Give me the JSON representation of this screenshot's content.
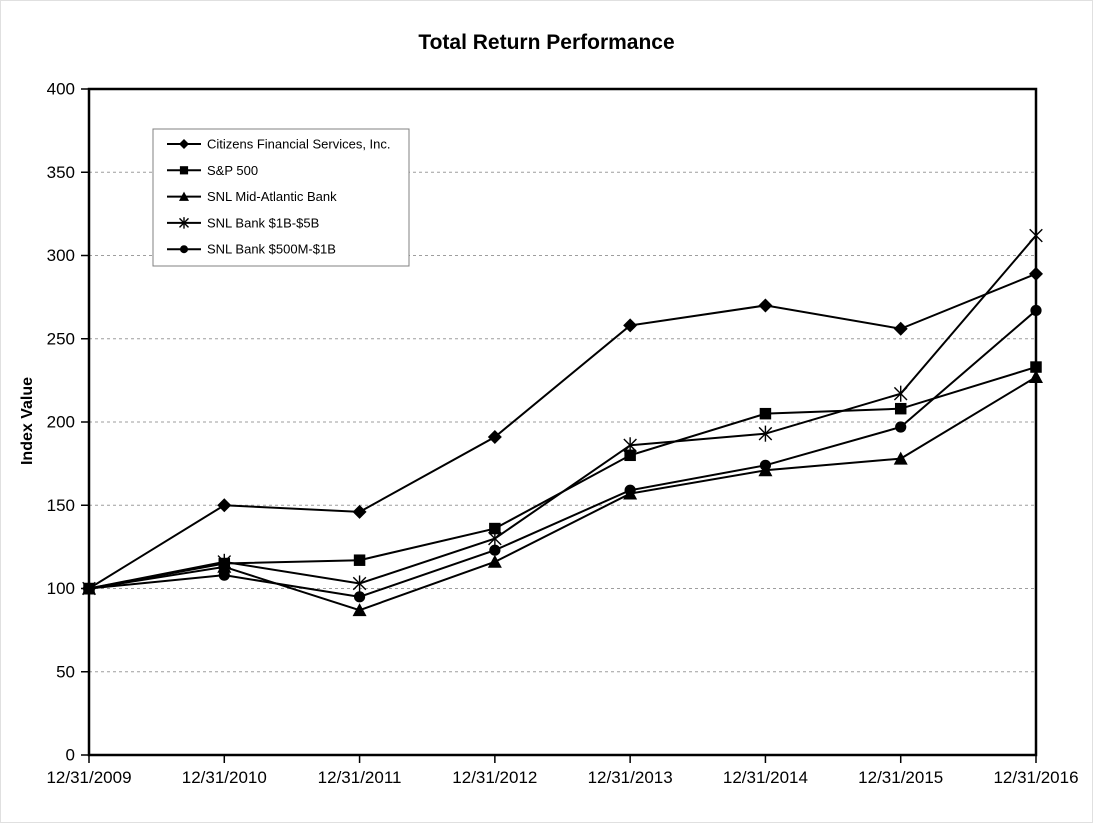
{
  "page": {
    "background": "#ffffff",
    "frame_border_color": "#e0e0e0"
  },
  "chart_data": {
    "type": "line",
    "title": "Total Return Performance",
    "ylabel": "Index Value",
    "xlabel": "",
    "categories": [
      "12/31/2009",
      "12/31/2010",
      "12/31/2011",
      "12/31/2012",
      "12/31/2013",
      "12/31/2014",
      "12/31/2015",
      "12/31/2016"
    ],
    "series": [
      {
        "name": "Citizens Financial Services, Inc.",
        "marker": "diamond",
        "values": [
          100,
          150,
          146,
          191,
          258,
          270,
          256,
          289
        ]
      },
      {
        "name": "S&P 500",
        "marker": "square",
        "values": [
          100,
          115,
          117,
          136,
          180,
          205,
          208,
          233
        ]
      },
      {
        "name": "SNL Mid-Atlantic Bank",
        "marker": "triangle",
        "values": [
          100,
          113,
          87,
          116,
          157,
          171,
          178,
          227
        ]
      },
      {
        "name": "SNL Bank $1B-$5B",
        "marker": "star",
        "values": [
          100,
          116,
          103,
          130,
          186,
          193,
          217,
          312
        ]
      },
      {
        "name": "SNL Bank $500M-$1B",
        "marker": "circle",
        "values": [
          100,
          108,
          95,
          123,
          159,
          174,
          197,
          267
        ]
      }
    ],
    "ylim": [
      0,
      400
    ],
    "ytick_step": 50,
    "grid": "horizontal-dashed",
    "grid_color": "#9e9e9e",
    "line_color": "#000000",
    "legend_position": "top-left-inside",
    "legend_border_color": "#808080"
  }
}
